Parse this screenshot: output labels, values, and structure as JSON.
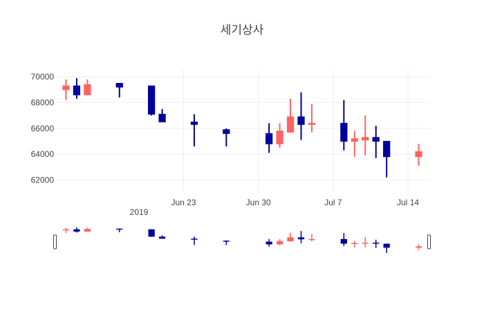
{
  "chart_data": {
    "type": "candlestick",
    "title": "세기상사",
    "xlabel": "",
    "ylabel": "",
    "ylim": [
      61000,
      70600
    ],
    "x_range": [
      "2019-06-11",
      "2019-07-16"
    ],
    "y_ticks": [
      62000,
      64000,
      66000,
      68000,
      70000
    ],
    "y_tick_labels": [
      "62000",
      "64000",
      "66000",
      "68000",
      "70000"
    ],
    "x_ticks": [
      "2019-06-23",
      "2019-06-30",
      "2019-07-07",
      "2019-07-14"
    ],
    "x_tick_labels": [
      "Jun 23",
      "Jun 30",
      "Jul 7",
      "Jul 14"
    ],
    "x_tick_year": "2019",
    "increasing_color": "#ff6361",
    "decreasing_color": "#00009b",
    "grid": true,
    "legend": false,
    "rangeslider": true,
    "series": [
      {
        "date": "2019-06-12",
        "open": 69000,
        "high": 69800,
        "low": 68200,
        "close": 69300
      },
      {
        "date": "2019-06-13",
        "open": 69300,
        "high": 69900,
        "low": 68300,
        "close": 68600
      },
      {
        "date": "2019-06-14",
        "open": 68600,
        "high": 69800,
        "low": 68600,
        "close": 69400
      },
      {
        "date": "2019-06-17",
        "open": 69500,
        "high": 69500,
        "low": 68400,
        "close": 69200
      },
      {
        "date": "2019-06-20",
        "open": 69300,
        "high": 69300,
        "low": 67000,
        "close": 67100
      },
      {
        "date": "2019-06-21",
        "open": 67100,
        "high": 67500,
        "low": 66500,
        "close": 66500
      },
      {
        "date": "2019-06-24",
        "open": 66500,
        "high": 67100,
        "low": 64600,
        "close": 66300
      },
      {
        "date": "2019-06-27",
        "open": 65900,
        "high": 66000,
        "low": 64600,
        "close": 65600
      },
      {
        "date": "2019-07-01",
        "open": 65600,
        "high": 66400,
        "low": 64100,
        "close": 64800
      },
      {
        "date": "2019-07-02",
        "open": 64800,
        "high": 66400,
        "low": 64500,
        "close": 65800
      },
      {
        "date": "2019-07-03",
        "open": 65700,
        "high": 68300,
        "low": 65700,
        "close": 66900
      },
      {
        "date": "2019-07-04",
        "open": 66900,
        "high": 68800,
        "low": 65100,
        "close": 66300
      },
      {
        "date": "2019-07-05",
        "open": 66300,
        "high": 67900,
        "low": 65700,
        "close": 66400
      },
      {
        "date": "2019-07-08",
        "open": 66400,
        "high": 68200,
        "low": 64300,
        "close": 65000
      },
      {
        "date": "2019-07-09",
        "open": 65000,
        "high": 65800,
        "low": 63800,
        "close": 65200
      },
      {
        "date": "2019-07-10",
        "open": 65100,
        "high": 67000,
        "low": 63900,
        "close": 65300
      },
      {
        "date": "2019-07-11",
        "open": 65300,
        "high": 66200,
        "low": 63700,
        "close": 65000
      },
      {
        "date": "2019-07-12",
        "open": 65000,
        "high": 65000,
        "low": 62200,
        "close": 63800
      },
      {
        "date": "2019-07-15",
        "open": 63800,
        "high": 64800,
        "low": 63100,
        "close": 64200
      }
    ]
  }
}
